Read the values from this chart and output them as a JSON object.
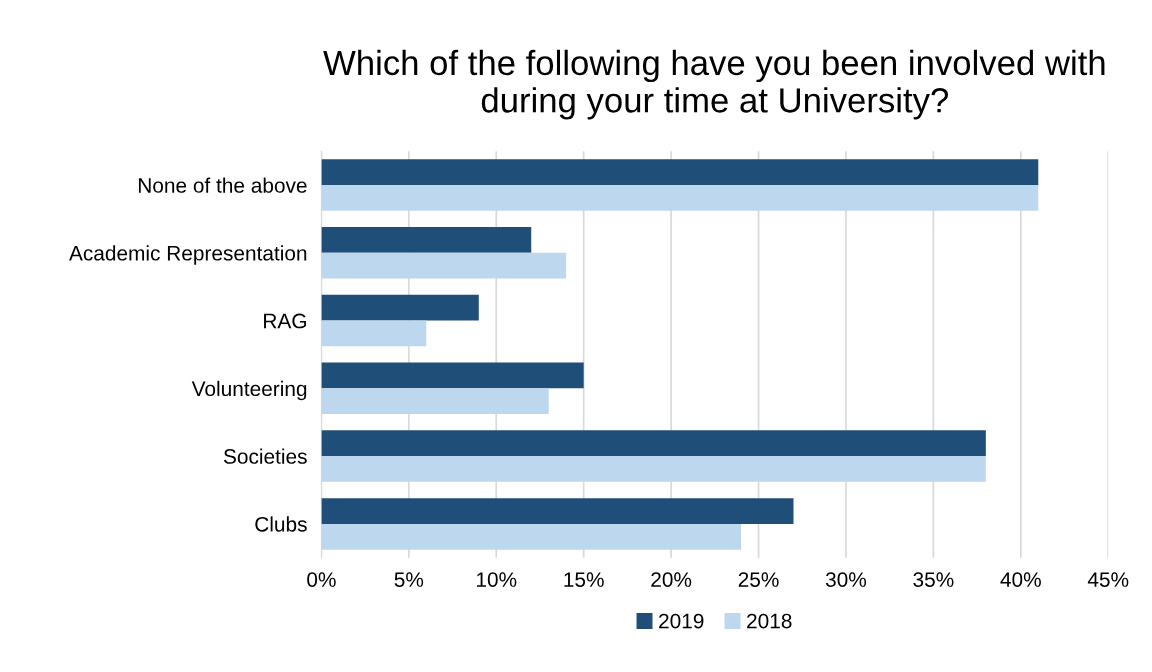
{
  "chart_data": {
    "type": "bar",
    "orientation": "horizontal",
    "title": "Which of the following have you been involved with\nduring your time at University?",
    "categories": [
      "None of the above",
      "Academic Representation",
      "RAG",
      "Volunteering",
      "Societies",
      "Clubs"
    ],
    "series": [
      {
        "name": "2019",
        "color": "#1f4e79",
        "values": [
          41,
          12,
          9,
          15,
          38,
          27
        ]
      },
      {
        "name": "2018",
        "color": "#bdd7ee",
        "values": [
          41,
          14,
          6,
          13,
          38,
          24
        ]
      }
    ],
    "xlim": [
      0,
      45
    ],
    "xticks": [
      {
        "value": 0,
        "label": "0%"
      },
      {
        "value": 5,
        "label": "5%"
      },
      {
        "value": 10,
        "label": "10%"
      },
      {
        "value": 15,
        "label": "15%"
      },
      {
        "value": 20,
        "label": "20%"
      },
      {
        "value": 25,
        "label": "25%"
      },
      {
        "value": 30,
        "label": "30%"
      },
      {
        "value": 35,
        "label": "35%"
      },
      {
        "value": 40,
        "label": "40%"
      },
      {
        "value": 45,
        "label": "45%"
      }
    ],
    "grid": "x",
    "legend": "bottom"
  }
}
